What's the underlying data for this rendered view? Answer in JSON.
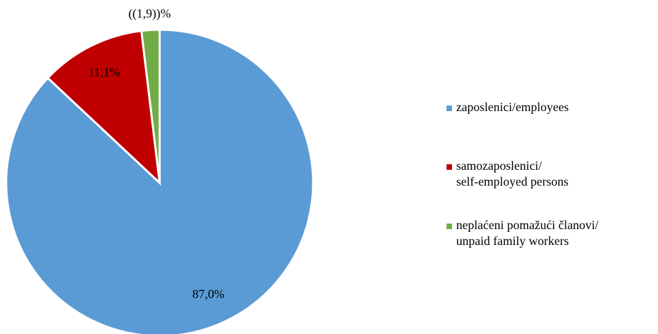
{
  "chart_data": {
    "type": "pie",
    "categories": [
      [
        "zaposlenici/employees"
      ],
      [
        "samozaposlenici/",
        "self-employed persons"
      ],
      [
        "neplaćeni pomažući članovi/",
        "unpaid family workers"
      ]
    ],
    "values": [
      87.0,
      11.1,
      1.9
    ],
    "value_labels": [
      "87,0%",
      "11,1%",
      "((1,9))%"
    ],
    "colors": [
      "#5b9bd5",
      "#c00000",
      "#70ad47"
    ],
    "legend": "right"
  }
}
